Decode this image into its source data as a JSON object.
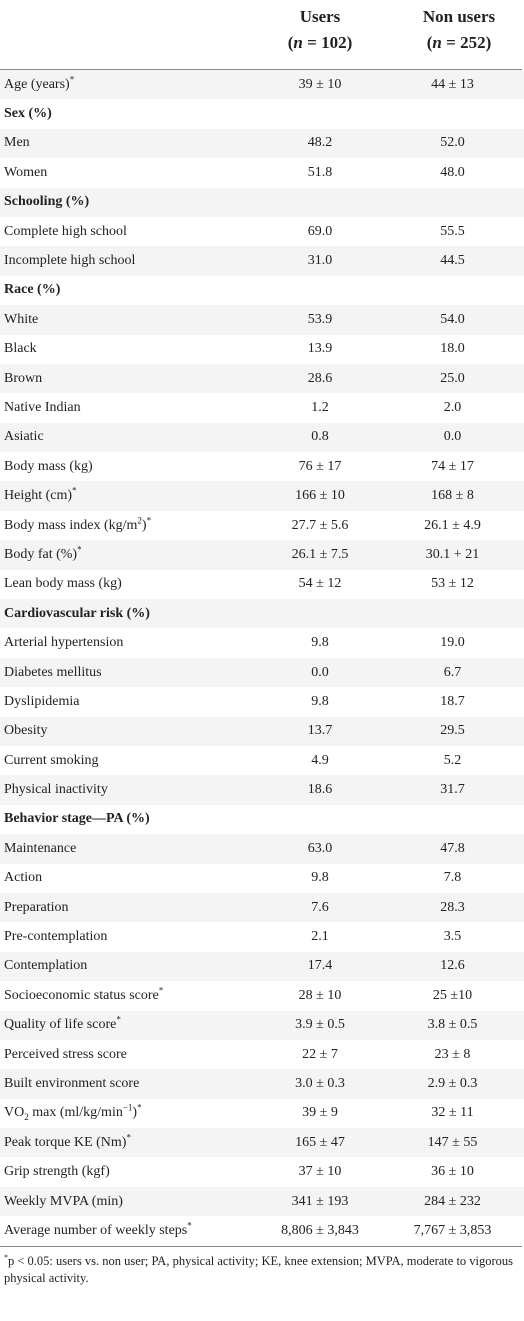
{
  "table": {
    "columns": [
      {
        "name": "Users",
        "n": "(n = 102)"
      },
      {
        "name": "Non users",
        "n": "(n = 252)"
      }
    ],
    "rows": [
      {
        "label": "Age (years)",
        "star": "*",
        "users": "39 ± 10",
        "non": "44 ± 13",
        "section": false
      },
      {
        "label": "Sex (%)",
        "star": "",
        "users": "",
        "non": "",
        "section": true
      },
      {
        "label": "Men",
        "star": "",
        "users": "48.2",
        "non": "52.0",
        "section": false
      },
      {
        "label": "Women",
        "star": "",
        "users": "51.8",
        "non": "48.0",
        "section": false
      },
      {
        "label": "Schooling (%)",
        "star": "",
        "users": "",
        "non": "",
        "section": true
      },
      {
        "label": "Complete high school",
        "star": "",
        "users": "69.0",
        "non": "55.5",
        "section": false
      },
      {
        "label": "Incomplete high school",
        "star": "",
        "users": "31.0",
        "non": "44.5",
        "section": false
      },
      {
        "label": "Race (%)",
        "star": "",
        "users": "",
        "non": "",
        "section": true
      },
      {
        "label": "White",
        "star": "",
        "users": "53.9",
        "non": "54.0",
        "section": false
      },
      {
        "label": "Black",
        "star": "",
        "users": "13.9",
        "non": "18.0",
        "section": false
      },
      {
        "label": "Brown",
        "star": "",
        "users": "28.6",
        "non": "25.0",
        "section": false
      },
      {
        "label": "Native Indian",
        "star": "",
        "users": "1.2",
        "non": "2.0",
        "section": false
      },
      {
        "label": "Asiatic",
        "star": "",
        "users": "0.8",
        "non": "0.0",
        "section": false
      },
      {
        "label": "Body mass (kg)",
        "star": "",
        "users": "76 ± 17",
        "non": "74 ± 17",
        "section": false
      },
      {
        "label": "Height (cm)",
        "star": "*",
        "users": "166 ± 10",
        "non": "168 ± 8",
        "section": false
      },
      {
        "label": "Body mass index (kg/m",
        "sup": "2",
        "label_after": ")",
        "star": "*",
        "users": "27.7 ± 5.6",
        "non": "26.1 ± 4.9",
        "section": false
      },
      {
        "label": "Body fat (%)",
        "star": "*",
        "users": "26.1 ± 7.5",
        "non": "30.1 + 21",
        "section": false
      },
      {
        "label": "Lean body mass (kg)",
        "star": "",
        "users": "54 ± 12",
        "non": "53 ± 12",
        "section": false
      },
      {
        "label": "Cardiovascular risk (%)",
        "star": "",
        "users": "",
        "non": "",
        "section": true
      },
      {
        "label": "Arterial hypertension",
        "star": "",
        "users": "9.8",
        "non": "19.0",
        "section": false
      },
      {
        "label": "Diabetes mellitus",
        "star": "",
        "users": "0.0",
        "non": "6.7",
        "section": false
      },
      {
        "label": "Dyslipidemia",
        "star": "",
        "users": "9.8",
        "non": "18.7",
        "section": false
      },
      {
        "label": "Obesity",
        "star": "",
        "users": "13.7",
        "non": "29.5",
        "section": false
      },
      {
        "label": "Current smoking",
        "star": "",
        "users": "4.9",
        "non": "5.2",
        "section": false
      },
      {
        "label": "Physical inactivity",
        "star": "",
        "users": "18.6",
        "non": "31.7",
        "section": false
      },
      {
        "label": "Behavior stage—PA (%)",
        "star": "",
        "users": "",
        "non": "",
        "section": true
      },
      {
        "label": "Maintenance",
        "star": "",
        "users": "63.0",
        "non": "47.8",
        "section": false
      },
      {
        "label": "Action",
        "star": "",
        "users": "9.8",
        "non": "7.8",
        "section": false
      },
      {
        "label": "Preparation",
        "star": "",
        "users": "7.6",
        "non": "28.3",
        "section": false
      },
      {
        "label": "Pre-contemplation",
        "star": "",
        "users": "2.1",
        "non": "3.5",
        "section": false
      },
      {
        "label": "Contemplation",
        "star": "",
        "users": "17.4",
        "non": "12.6",
        "section": false
      },
      {
        "label": "Socioeconomic status score",
        "star": "*",
        "users": "28 ± 10",
        "non": "25 ±10",
        "section": false
      },
      {
        "label": "Quality of life score",
        "star": "*",
        "users": "3.9 ± 0.5",
        "non": "3.8 ± 0.5",
        "section": false
      },
      {
        "label": "Perceived stress score",
        "star": "",
        "users": "22 ± 7",
        "non": "23 ± 8",
        "section": false
      },
      {
        "label": "Built environment score",
        "star": "",
        "users": "3.0 ± 0.3",
        "non": "2.9 ± 0.3",
        "section": false
      },
      {
        "label": "VO",
        "sub": "2",
        "label_after": " max (ml/kg/min",
        "sup": "−1",
        "label_after2": ")",
        "star": "*",
        "users": "39 ± 9",
        "non": "32 ± 11",
        "section": false
      },
      {
        "label": "Peak torque KE (Nm)",
        "star": "*",
        "users": "165 ± 47",
        "non": "147 ± 55",
        "section": false
      },
      {
        "label": "Grip strength (kgf)",
        "star": "",
        "users": "37 ± 10",
        "non": "36 ± 10",
        "section": false
      },
      {
        "label": "Weekly MVPA (min)",
        "star": "",
        "users": "341 ± 193",
        "non": "284 ± 232",
        "section": false
      },
      {
        "label": "Average number of weekly steps",
        "star": "*",
        "users": "8,806 ± 3,843",
        "non": "7,767 ± 3,853",
        "section": false
      }
    ]
  },
  "footnote": {
    "star": "*",
    "text": "p < 0.05: users vs. non user; PA, physical activity; KE, knee extension; MVPA, moderate to vigorous physical activity."
  }
}
